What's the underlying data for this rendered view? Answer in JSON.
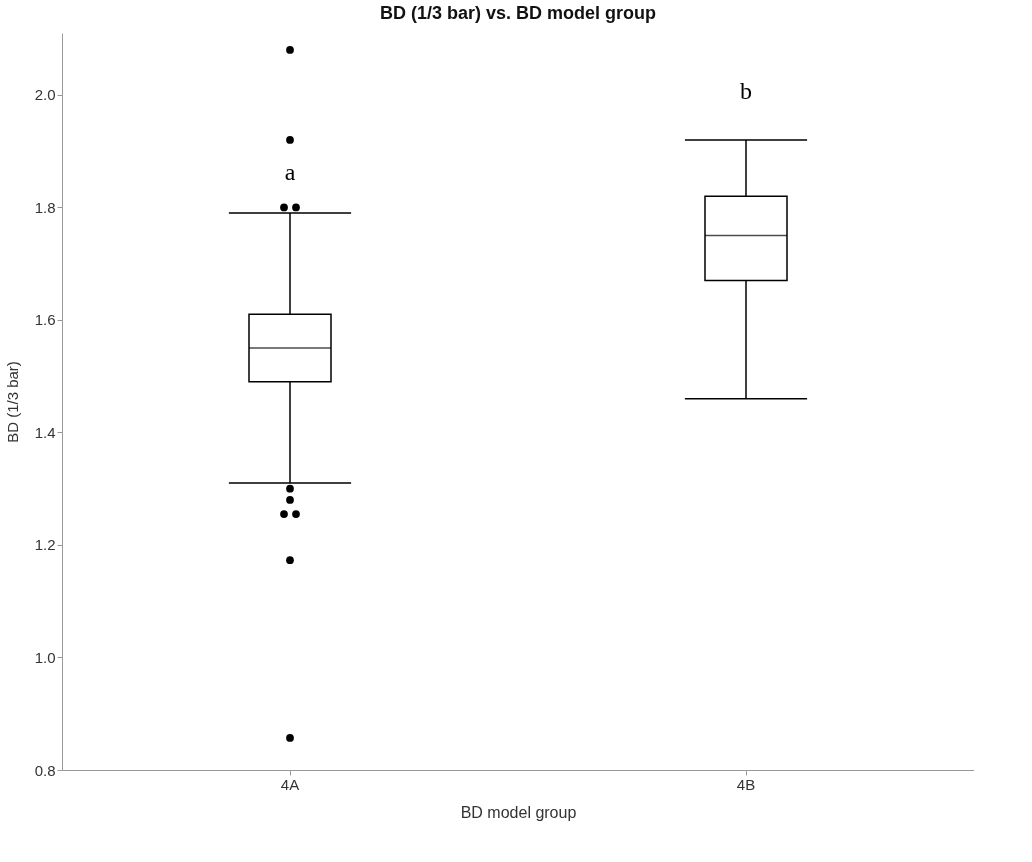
{
  "chart_data": {
    "type": "box",
    "title": "BD (1/3 bar) vs. BD model group",
    "xlabel": "BD model group",
    "ylabel": "BD (1/3 bar)",
    "categories": [
      "4A",
      "4B"
    ],
    "boxes": [
      {
        "low": 1.31,
        "q1": 1.49,
        "median": 1.55,
        "q3": 1.61,
        "high": 1.79,
        "outliers": [
          2.08,
          1.92,
          1.8,
          1.8,
          1.3,
          1.28,
          1.255,
          1.255,
          1.173,
          0.857
        ]
      },
      {
        "low": 1.46,
        "q1": 1.67,
        "median": 1.75,
        "q3": 1.82,
        "high": 1.92
      }
    ],
    "ylim": [
      0.8,
      2.11
    ],
    "yticks": [
      0.8,
      {
        "value": 1.0,
        "label": "1.0"
      },
      1.2,
      1.4,
      1.6,
      1.8,
      {
        "value": 2.0,
        "label": "2.0"
      }
    ],
    "annotations": [
      "a",
      "b"
    ]
  }
}
